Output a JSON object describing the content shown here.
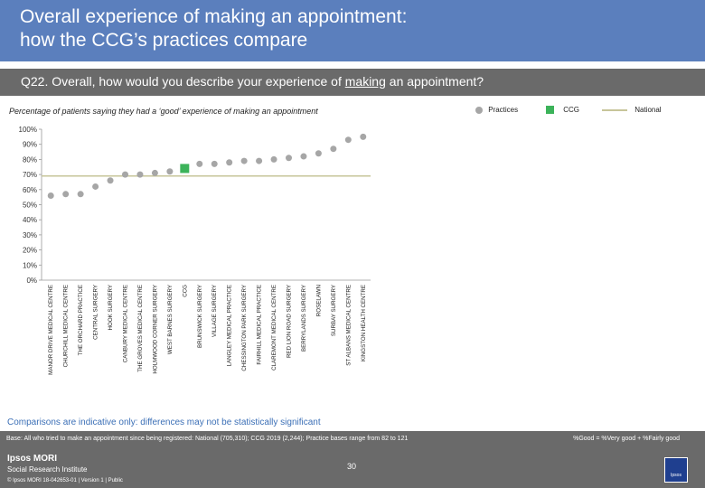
{
  "header": {
    "title": "Overall experience of making an appointment:\nhow the CCG’s practices compare"
  },
  "question": {
    "before": "Q22. Overall, how would you describe your experience of ",
    "underlined": "making",
    "after": " an appointment?"
  },
  "subtitle": "Percentage of patients saying they had a ‘good’ experience of making an appointment",
  "legend": {
    "practices": "Practices",
    "ccg": "CCG",
    "national": "National"
  },
  "colors": {
    "practice": "#a6a6a6",
    "ccg": "#3cb35a",
    "national": "#c7c59a",
    "header": "#5b7fbd",
    "footer": "#6a6a6a"
  },
  "chart_data": {
    "type": "scatter",
    "ylim": [
      0,
      100
    ],
    "y_ticks": [
      "0%",
      "10%",
      "20%",
      "30%",
      "40%",
      "50%",
      "60%",
      "70%",
      "80%",
      "90%",
      "100%"
    ],
    "national": 69,
    "categories": [
      "MANOR DRIVE MEDICAL CENTRE",
      "CHURCHILL MEDICAL CENTRE",
      "THE ORCHARD PRACTICE",
      "CENTRAL SURGERY",
      "HOOK SURGERY",
      "CANBURY MEDICAL CENTRE",
      "THE GROVES MEDICAL CENTRE",
      "HOLMWOOD CORNER SURGERY",
      "WEST BARNES SURGERY",
      "CCG",
      "BRUNSWICK SURGERY",
      "VILLAGE SURGERY",
      "LANGLEY MEDICAL PRACTICE",
      "CHESSINGTON PARK SURGERY",
      "FAIRHILL MEDICAL PRACTICE",
      "CLAREMONT MEDICAL CENTRE",
      "RED LION ROAD SURGERY",
      "BERRYLANDS SURGERY",
      "ROSELAWN",
      "SURBAY SURGERY",
      "ST ALBANS MEDICAL CENTRE",
      "KINGSTON HEALTH CENTRE"
    ],
    "values": [
      56,
      57,
      57,
      62,
      66,
      70,
      70,
      71,
      72,
      74,
      77,
      77,
      78,
      79,
      79,
      80,
      81,
      82,
      84,
      87,
      93,
      95
    ]
  },
  "note": "Comparisons are indicative only: differences may not be statistically significant",
  "footer": {
    "base": "Base: All who tried to make an appointment since being registered: National (705,310); CCG 2019 (2,244); Practice bases range from 82 to 121",
    "good": "%Good = %Very good + %Fairly good",
    "page": "30",
    "logo_line1": "Ipsos MORI",
    "logo_line2": "Social Research Institute",
    "copyright": "© Ipsos MORI      18-042653-01 | Version 1 | Public",
    "ipsos_badge": "Ipsos"
  }
}
